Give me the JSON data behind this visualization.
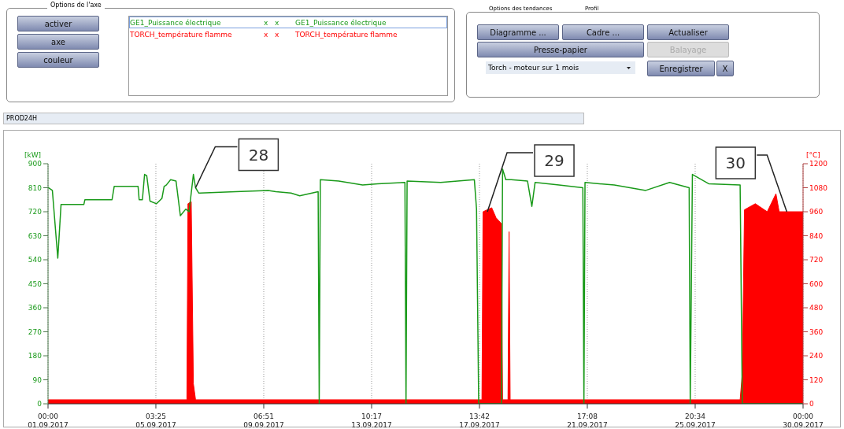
{
  "chart_data": {
    "type": "line",
    "ylabel": "[kW]",
    "y2label": "[°C]",
    "xlim": [
      "2017-09-01T00:00",
      "2017-09-30T00:00"
    ],
    "xticks": [
      {
        "value": "2017-09-01T00:00",
        "label": "00:00\n01.09.2017"
      },
      {
        "value": "2017-09-05T03:25",
        "label": "03:25\n05.09.2017"
      },
      {
        "value": "2017-09-09T06:51",
        "label": "06:51\n09.09.2017"
      },
      {
        "value": "2017-09-13T10:17",
        "label": "10:17\n13.09.2017"
      },
      {
        "value": "2017-09-17T13:42",
        "label": "13:42\n17.09.2017"
      },
      {
        "value": "2017-09-21T17:08",
        "label": "17:08\n21.09.2017"
      },
      {
        "value": "2017-09-25T20:34",
        "label": "20:34\n25.09.2017"
      },
      {
        "value": "2017-09-30T00:00",
        "label": "00:00\n30.09.2017"
      }
    ],
    "ylim": [
      0,
      900
    ],
    "yticks": [
      0,
      90,
      180,
      270,
      360,
      450,
      540,
      630,
      720,
      810,
      900
    ],
    "y2lim": [
      0,
      1200
    ],
    "y2ticks": [
      0,
      120,
      240,
      360,
      480,
      600,
      720,
      840,
      960,
      1080,
      1200
    ],
    "grid": "x",
    "legend": "top left",
    "series": [
      {
        "name": "TORCH_température flamme",
        "color": "#ff0000",
        "type": "area",
        "axis": "y2",
        "x": [
          "2017-09-01T00:00",
          "2017-09-06T08:00",
          "2017-09-06T09:00",
          "2017-09-06T12:00",
          "2017-09-06T14:00",
          "2017-09-06T16:00",
          "2017-09-17T16:00",
          "2017-09-17T17:00",
          "2017-09-18T01:00",
          "2017-09-18T05:00",
          "2017-09-18T10:00",
          "2017-09-18T11:00",
          "2017-09-18T16:00",
          "2017-09-18T17:00",
          "2017-09-18T18:00",
          "2017-09-27T14:00",
          "2017-09-27T16:00",
          "2017-09-27T18:00",
          "2017-09-28T04:00",
          "2017-09-28T15:00",
          "2017-09-28T23:00",
          "2017-09-29T02:00",
          "2017-09-30T00:00"
        ],
        "values": [
          20,
          20,
          1000,
          1010,
          100,
          20,
          20,
          960,
          980,
          930,
          900,
          20,
          20,
          860,
          20,
          20,
          150,
          970,
          1000,
          960,
          1050,
          960,
          960
        ]
      },
      {
        "name": "GE1_Puissance électrique",
        "color": "#1a9a1a",
        "x": [
          "2017-09-01T00:00",
          "2017-09-01T04:00",
          "2017-09-01T09:00",
          "2017-09-01T12:00",
          "2017-09-02T09:00",
          "2017-09-02T10:00",
          "2017-09-03T11:00",
          "2017-09-03T13:00",
          "2017-09-04T11:00",
          "2017-09-04T12:00",
          "2017-09-04T15:00",
          "2017-09-04T17:00",
          "2017-09-04T19:00",
          "2017-09-04T22:00",
          "2017-09-05T04:00",
          "2017-09-05T09:00",
          "2017-09-05T11:00",
          "2017-09-05T13:00",
          "2017-09-05T17:00",
          "2017-09-05T22:00",
          "2017-09-06T02:00",
          "2017-09-06T07:00",
          "2017-09-06T10:00",
          "2017-09-06T14:00",
          "2017-09-06T16:00",
          "2017-09-06T19:00",
          "2017-09-08T05:00",
          "2017-09-09T11:00",
          "2017-09-09T18:00",
          "2017-09-10T08:00",
          "2017-09-10T16:00",
          "2017-09-11T09:00",
          "2017-09-11T10:00",
          "2017-09-11T11:00",
          "2017-09-12T04:00",
          "2017-09-13T02:00",
          "2017-09-13T16:00",
          "2017-09-14T17:00",
          "2017-09-14T18:00",
          "2017-09-14T19:00",
          "2017-09-16T02:00",
          "2017-09-17T09:00",
          "2017-09-17T11:00",
          "2017-09-17T13:00",
          "2017-09-18T10:00",
          "2017-09-18T11:00",
          "2017-09-18T14:00",
          "2017-09-18T19:00",
          "2017-09-19T10:00",
          "2017-09-19T14:00",
          "2017-09-19T17:00",
          "2017-09-20T15:00",
          "2017-09-21T13:00",
          "2017-09-21T14:00",
          "2017-09-21T15:00",
          "2017-09-22T18:00",
          "2017-09-23T23:00",
          "2017-09-24T21:00",
          "2017-09-25T15:00",
          "2017-09-25T16:00",
          "2017-09-25T18:00",
          "2017-09-26T09:00",
          "2017-09-27T14:00",
          "2017-09-27T16:00",
          "2017-09-30T00:00"
        ],
        "values": [
          811,
          800,
          546,
          747,
          747,
          765,
          765,
          815,
          815,
          765,
          765,
          860,
          855,
          760,
          750,
          770,
          815,
          820,
          840,
          835,
          705,
          730,
          720,
          860,
          810,
          790,
          795,
          800,
          795,
          790,
          780,
          795,
          0,
          840,
          835,
          820,
          825,
          830,
          0,
          835,
          830,
          840,
          730,
          0,
          0,
          880,
          840,
          840,
          835,
          740,
          830,
          820,
          810,
          0,
          830,
          820,
          800,
          830,
          810,
          0,
          860,
          825,
          820,
          0,
          0
        ]
      }
    ],
    "annotations": [
      "Options de l'axe",
      "activer",
      "axe",
      "couleur",
      "x   x",
      "x   x",
      "Options des tendances",
      "Profil",
      "Diagramme ...",
      "Cadre ...",
      "Actualiser",
      "Presse-papier",
      "Balayage",
      "Torch - moteur sur 1 mois",
      "Enregistrer",
      "X",
      "PROD24H",
      {
        "text": "28",
        "x": "2017-09-06T16:00",
        "y": 810
      },
      {
        "text": "29",
        "x": "2017-09-17T21:00",
        "y": 720
      },
      {
        "text": "30",
        "x": "2017-09-29T09:00",
        "y": 720
      }
    ]
  }
}
